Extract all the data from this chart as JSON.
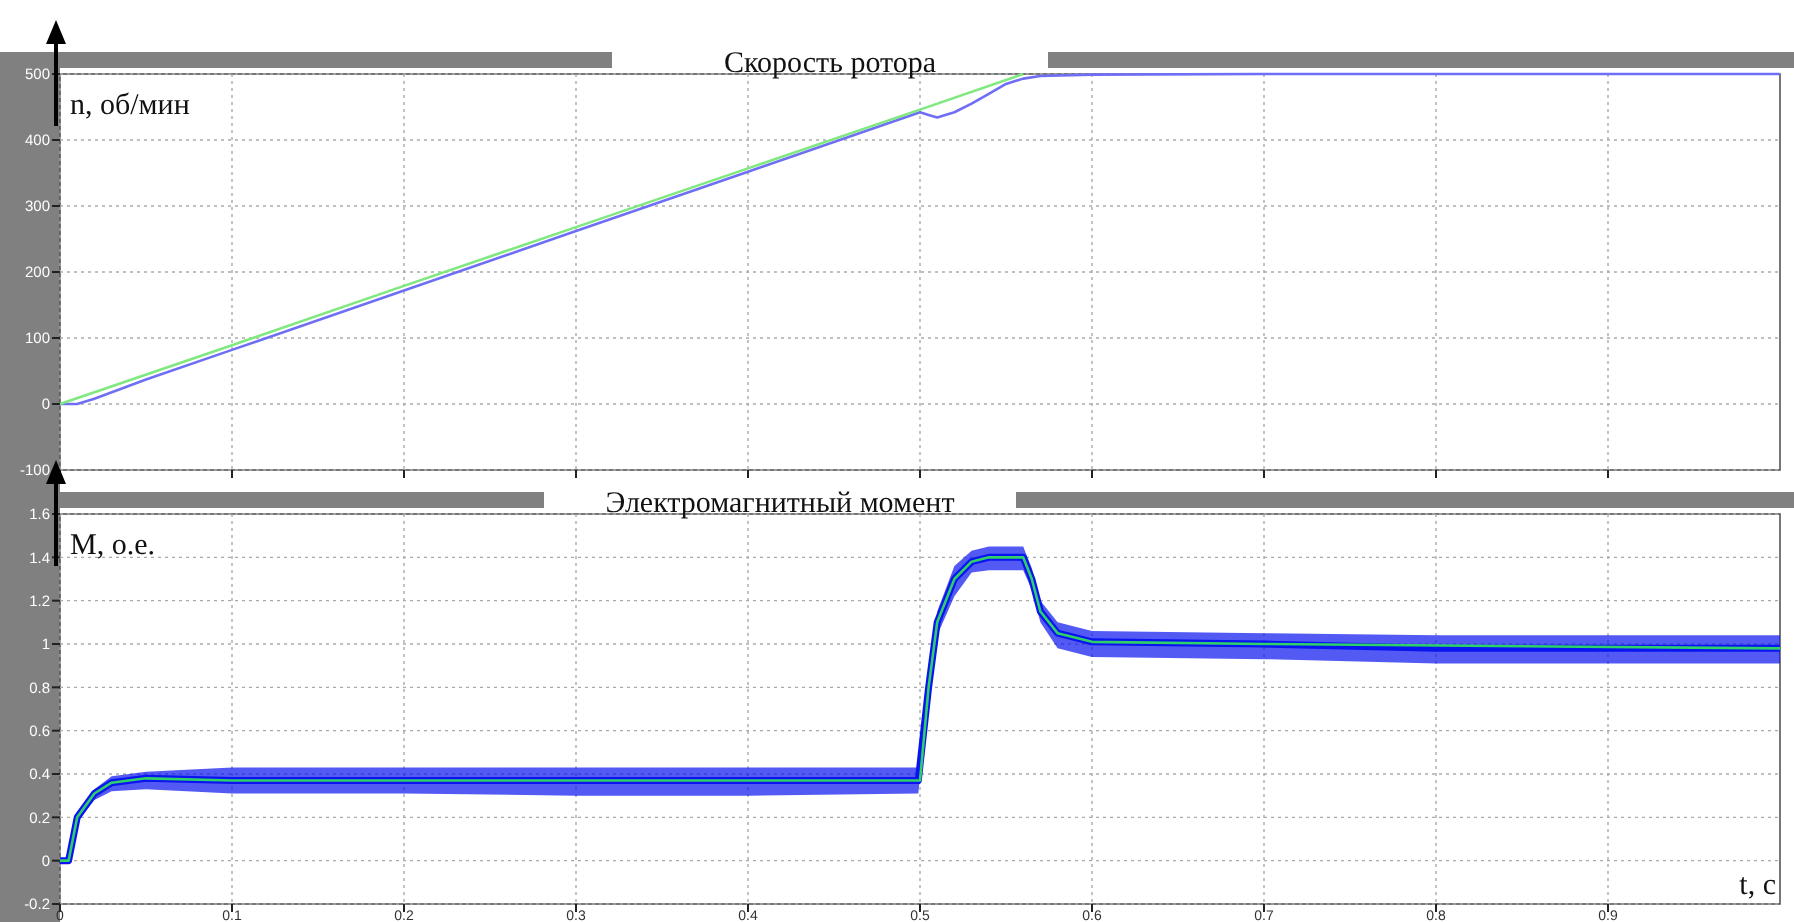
{
  "chart_data": [
    {
      "type": "line",
      "title": "Скорость ротора",
      "ylabel": "n, об/мин",
      "xlim": [
        0,
        1
      ],
      "xticks": [
        0,
        0.1,
        0.2,
        0.3,
        0.4,
        0.5,
        0.6,
        0.7,
        0.8,
        0.9
      ],
      "ylim": [
        -100,
        500
      ],
      "yticks": [
        -100,
        0,
        100,
        200,
        300,
        400,
        500
      ],
      "grid": true,
      "tick_labels": "y",
      "series": [
        {
          "color": "#6f6ff5",
          "x": [
            0,
            0.01,
            0.02,
            0.05,
            0.1,
            0.2,
            0.3,
            0.4,
            0.5,
            0.505,
            0.51,
            0.52,
            0.53,
            0.54,
            0.55,
            0.56,
            0.57,
            0.6,
            0.7,
            0.8,
            0.9,
            1
          ],
          "values": [
            0,
            0,
            8,
            37,
            82,
            172,
            262,
            352,
            442,
            438,
            434,
            442,
            455,
            470,
            485,
            493,
            497,
            499,
            500,
            500,
            500,
            500
          ]
        },
        {
          "color": "#7fe87f",
          "x": [
            0,
            0.1,
            0.2,
            0.3,
            0.4,
            0.5,
            0.56
          ],
          "values": [
            0,
            89,
            179,
            268,
            357,
            446,
            500
          ]
        }
      ]
    },
    {
      "type": "line",
      "title": "Электромагнитный момент",
      "ylabel": "M, о.е.",
      "xlabel": "t, c",
      "xlim": [
        0,
        1
      ],
      "xticks": [
        0,
        0.1,
        0.2,
        0.3,
        0.4,
        0.5,
        0.6,
        0.7,
        0.8,
        0.9
      ],
      "ylim": [
        -0.2,
        1.6
      ],
      "yticks": [
        -0.2,
        0,
        0.2,
        0.4,
        0.6,
        0.8,
        1,
        1.2,
        1.4,
        1.6
      ],
      "grid": true,
      "series": [
        {
          "color": "#0a14f0",
          "x": [
            0,
            0.005,
            0.01,
            0.02,
            0.03,
            0.05,
            0.1,
            0.2,
            0.3,
            0.4,
            0.499,
            0.505,
            0.51,
            0.52,
            0.53,
            0.54,
            0.56,
            0.565,
            0.57,
            0.58,
            0.6,
            0.7,
            0.8,
            0.9,
            1
          ],
          "values": [
            0,
            0,
            0.2,
            0.31,
            0.36,
            0.38,
            0.37,
            0.37,
            0.37,
            0.37,
            0.37,
            0.8,
            1.1,
            1.3,
            1.38,
            1.4,
            1.4,
            1.3,
            1.15,
            1.05,
            1.01,
            1.0,
            0.98,
            0.98,
            0.98
          ],
          "lower": [
            0,
            0,
            0.18,
            0.28,
            0.32,
            0.33,
            0.31,
            0.31,
            0.3,
            0.3,
            0.31,
            0.75,
            1.04,
            1.22,
            1.33,
            1.34,
            1.34,
            1.25,
            1.1,
            0.98,
            0.94,
            0.93,
            0.91,
            0.91,
            0.91
          ],
          "upper": [
            0,
            0,
            0.22,
            0.33,
            0.39,
            0.41,
            0.43,
            0.43,
            0.43,
            0.43,
            0.43,
            0.85,
            1.15,
            1.36,
            1.43,
            1.45,
            1.45,
            1.35,
            1.2,
            1.1,
            1.06,
            1.05,
            1.04,
            1.04,
            1.04
          ]
        },
        {
          "color": "#2fd06a",
          "x": [
            0,
            0.005,
            0.01,
            0.02,
            0.03,
            0.05,
            0.1,
            0.5,
            0.505,
            0.51,
            0.52,
            0.53,
            0.54,
            0.56,
            0.565,
            0.57,
            0.58,
            0.6,
            0.7,
            1
          ],
          "values": [
            0,
            0,
            0.2,
            0.31,
            0.36,
            0.38,
            0.37,
            0.37,
            0.8,
            1.1,
            1.3,
            1.38,
            1.4,
            1.4,
            1.3,
            1.15,
            1.05,
            1.01,
            1.0,
            0.98
          ]
        }
      ]
    }
  ]
}
